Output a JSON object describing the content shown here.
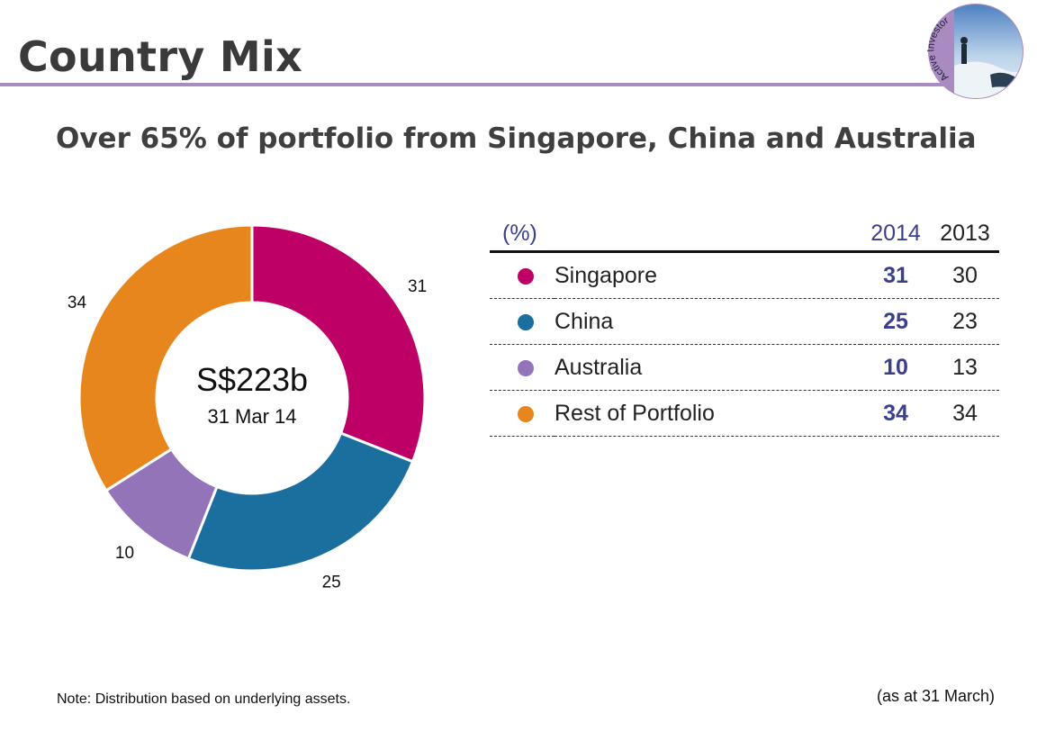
{
  "title": "Country Mix",
  "badge_text": "Active Investor",
  "subtitle": "Over 65% of portfolio from Singapore, China and Australia",
  "chart_data": {
    "type": "pie",
    "variant": "donut",
    "center_value": "S$223b",
    "center_date": "31 Mar 14",
    "slices": [
      {
        "name": "Singapore",
        "value": 31,
        "color": "#be0066"
      },
      {
        "name": "China",
        "value": 25,
        "color": "#1b6f9e"
      },
      {
        "name": "Australia",
        "value": 10,
        "color": "#9474b8"
      },
      {
        "name": "Rest of Portfolio",
        "value": 34,
        "color": "#e8861e"
      }
    ]
  },
  "table": {
    "unit_header": "(%)",
    "columns": [
      "2014",
      "2013"
    ],
    "rows": [
      {
        "name": "Singapore",
        "color": "#be0066",
        "v2014": "31",
        "v2013": "30"
      },
      {
        "name": "China",
        "color": "#1b6f9e",
        "v2014": "25",
        "v2013": "23"
      },
      {
        "name": "Australia",
        "color": "#9474b8",
        "v2014": "10",
        "v2013": "13"
      },
      {
        "name": "Rest of Portfolio",
        "color": "#e8861e",
        "v2014": "34",
        "v2013": "34"
      }
    ]
  },
  "note": "Note: Distribution based on underlying assets.",
  "as_at": "(as at 31 March)",
  "colors": {
    "accent_rule": "#a98bc2",
    "highlight_text": "#3b3f8c"
  }
}
